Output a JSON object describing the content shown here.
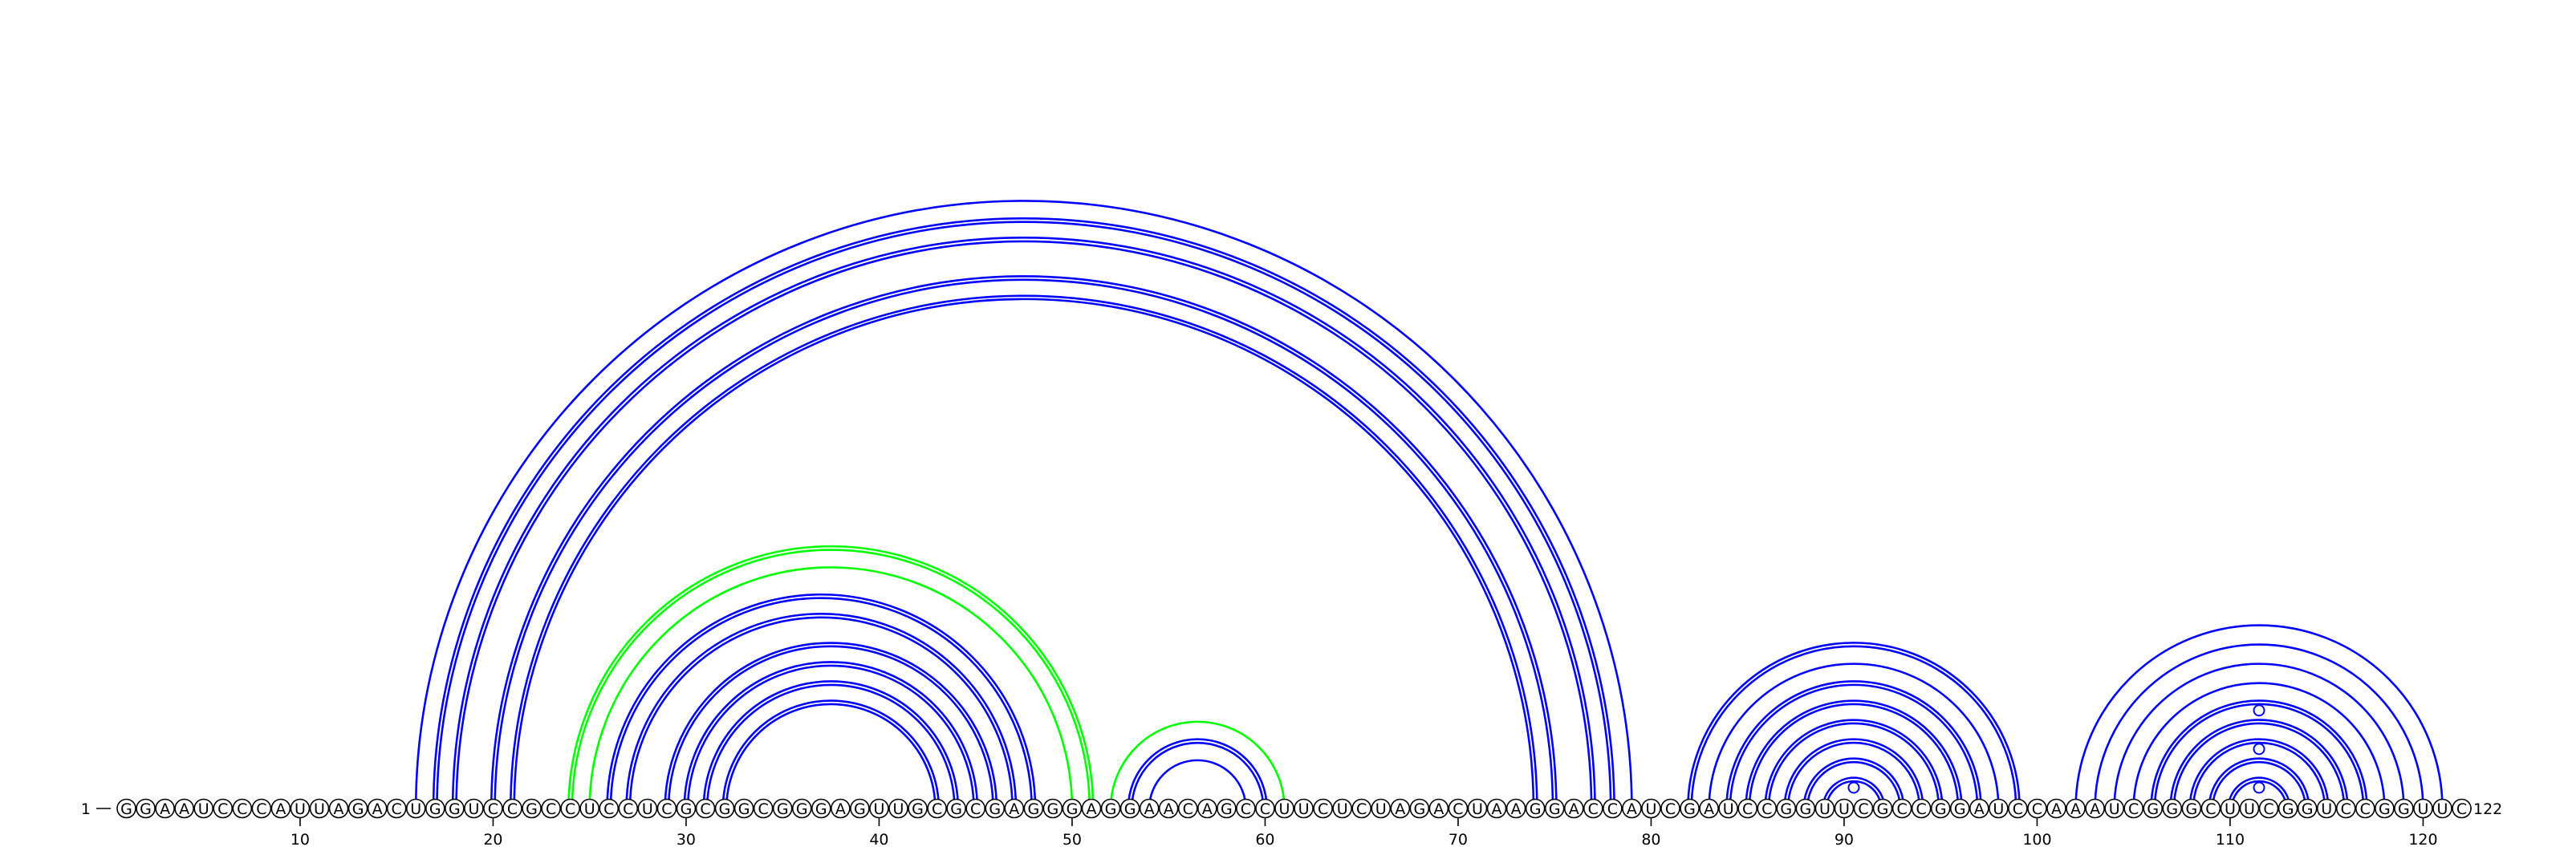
{
  "sequence": "GGAAUCCCAUUAGACUGGUCCGCCUCCUCGCGGCGGGAGUUGCGCGAGGGAGGAACAGCCUUCUCUAGACUAAGGACCAUCGAUCCGGUUCGCCGGAUCCAAAUCGGGCUUCGGUCCGGUUC",
  "start_label": "1",
  "end_label": "122",
  "ticks": [
    "10",
    "20",
    "30",
    "40",
    "50",
    "60",
    "70",
    "80",
    "90",
    "100",
    "110",
    "120"
  ],
  "colors": {
    "blue": "#0000ff",
    "green": "#00ff00",
    "axis": "#000000"
  },
  "arcs": [
    {
      "i": 16,
      "j": 79,
      "color": "blue",
      "double": false
    },
    {
      "i": 17,
      "j": 78,
      "color": "blue",
      "double": true
    },
    {
      "i": 18,
      "j": 77,
      "color": "blue",
      "double": true
    },
    {
      "i": 20,
      "j": 75,
      "color": "blue",
      "double": true
    },
    {
      "i": 21,
      "j": 74,
      "color": "blue",
      "double": true
    },
    {
      "i": 24,
      "j": 51,
      "color": "green",
      "double": true
    },
    {
      "i": 25,
      "j": 50,
      "color": "green",
      "double": false
    },
    {
      "i": 26,
      "j": 48,
      "color": "blue",
      "double": true
    },
    {
      "i": 27,
      "j": 47,
      "color": "blue",
      "double": true
    },
    {
      "i": 29,
      "j": 46,
      "color": "blue",
      "double": true
    },
    {
      "i": 30,
      "j": 45,
      "color": "blue",
      "double": true
    },
    {
      "i": 31,
      "j": 44,
      "color": "blue",
      "double": true
    },
    {
      "i": 32,
      "j": 43,
      "color": "blue",
      "double": true
    },
    {
      "i": 52,
      "j": 61,
      "color": "green",
      "double": false
    },
    {
      "i": 53,
      "j": 60,
      "color": "blue",
      "double": true
    },
    {
      "i": 54,
      "j": 59,
      "color": "blue",
      "double": false
    },
    {
      "i": 82,
      "j": 99,
      "color": "blue",
      "double": true
    },
    {
      "i": 83,
      "j": 98,
      "color": "blue",
      "double": false
    },
    {
      "i": 84,
      "j": 97,
      "color": "blue",
      "double": true
    },
    {
      "i": 85,
      "j": 96,
      "color": "blue",
      "double": true
    },
    {
      "i": 86,
      "j": 95,
      "color": "blue",
      "double": true
    },
    {
      "i": 87,
      "j": 94,
      "color": "blue",
      "double": true
    },
    {
      "i": 88,
      "j": 93,
      "color": "blue",
      "double": true
    },
    {
      "i": 89,
      "j": 92,
      "color": "blue",
      "double": true
    },
    {
      "i": 102,
      "j": 121,
      "color": "blue",
      "double": false
    },
    {
      "i": 103,
      "j": 120,
      "color": "blue",
      "double": false
    },
    {
      "i": 104,
      "j": 119,
      "color": "blue",
      "double": false
    },
    {
      "i": 105,
      "j": 118,
      "color": "blue",
      "double": false
    },
    {
      "i": 106,
      "j": 117,
      "color": "blue",
      "double": true
    },
    {
      "i": 107,
      "j": 116,
      "color": "blue",
      "double": true
    },
    {
      "i": 108,
      "j": 115,
      "color": "blue",
      "double": true
    },
    {
      "i": 109,
      "j": 114,
      "color": "blue",
      "double": true
    },
    {
      "i": 110,
      "j": 113,
      "color": "blue",
      "double": true
    }
  ],
  "markers": [
    {
      "pos": 90.5,
      "level": 1
    },
    {
      "pos": 111.5,
      "level": 1
    },
    {
      "pos": 111.5,
      "level": 3
    },
    {
      "pos": 111.5,
      "level": 5
    }
  ]
}
